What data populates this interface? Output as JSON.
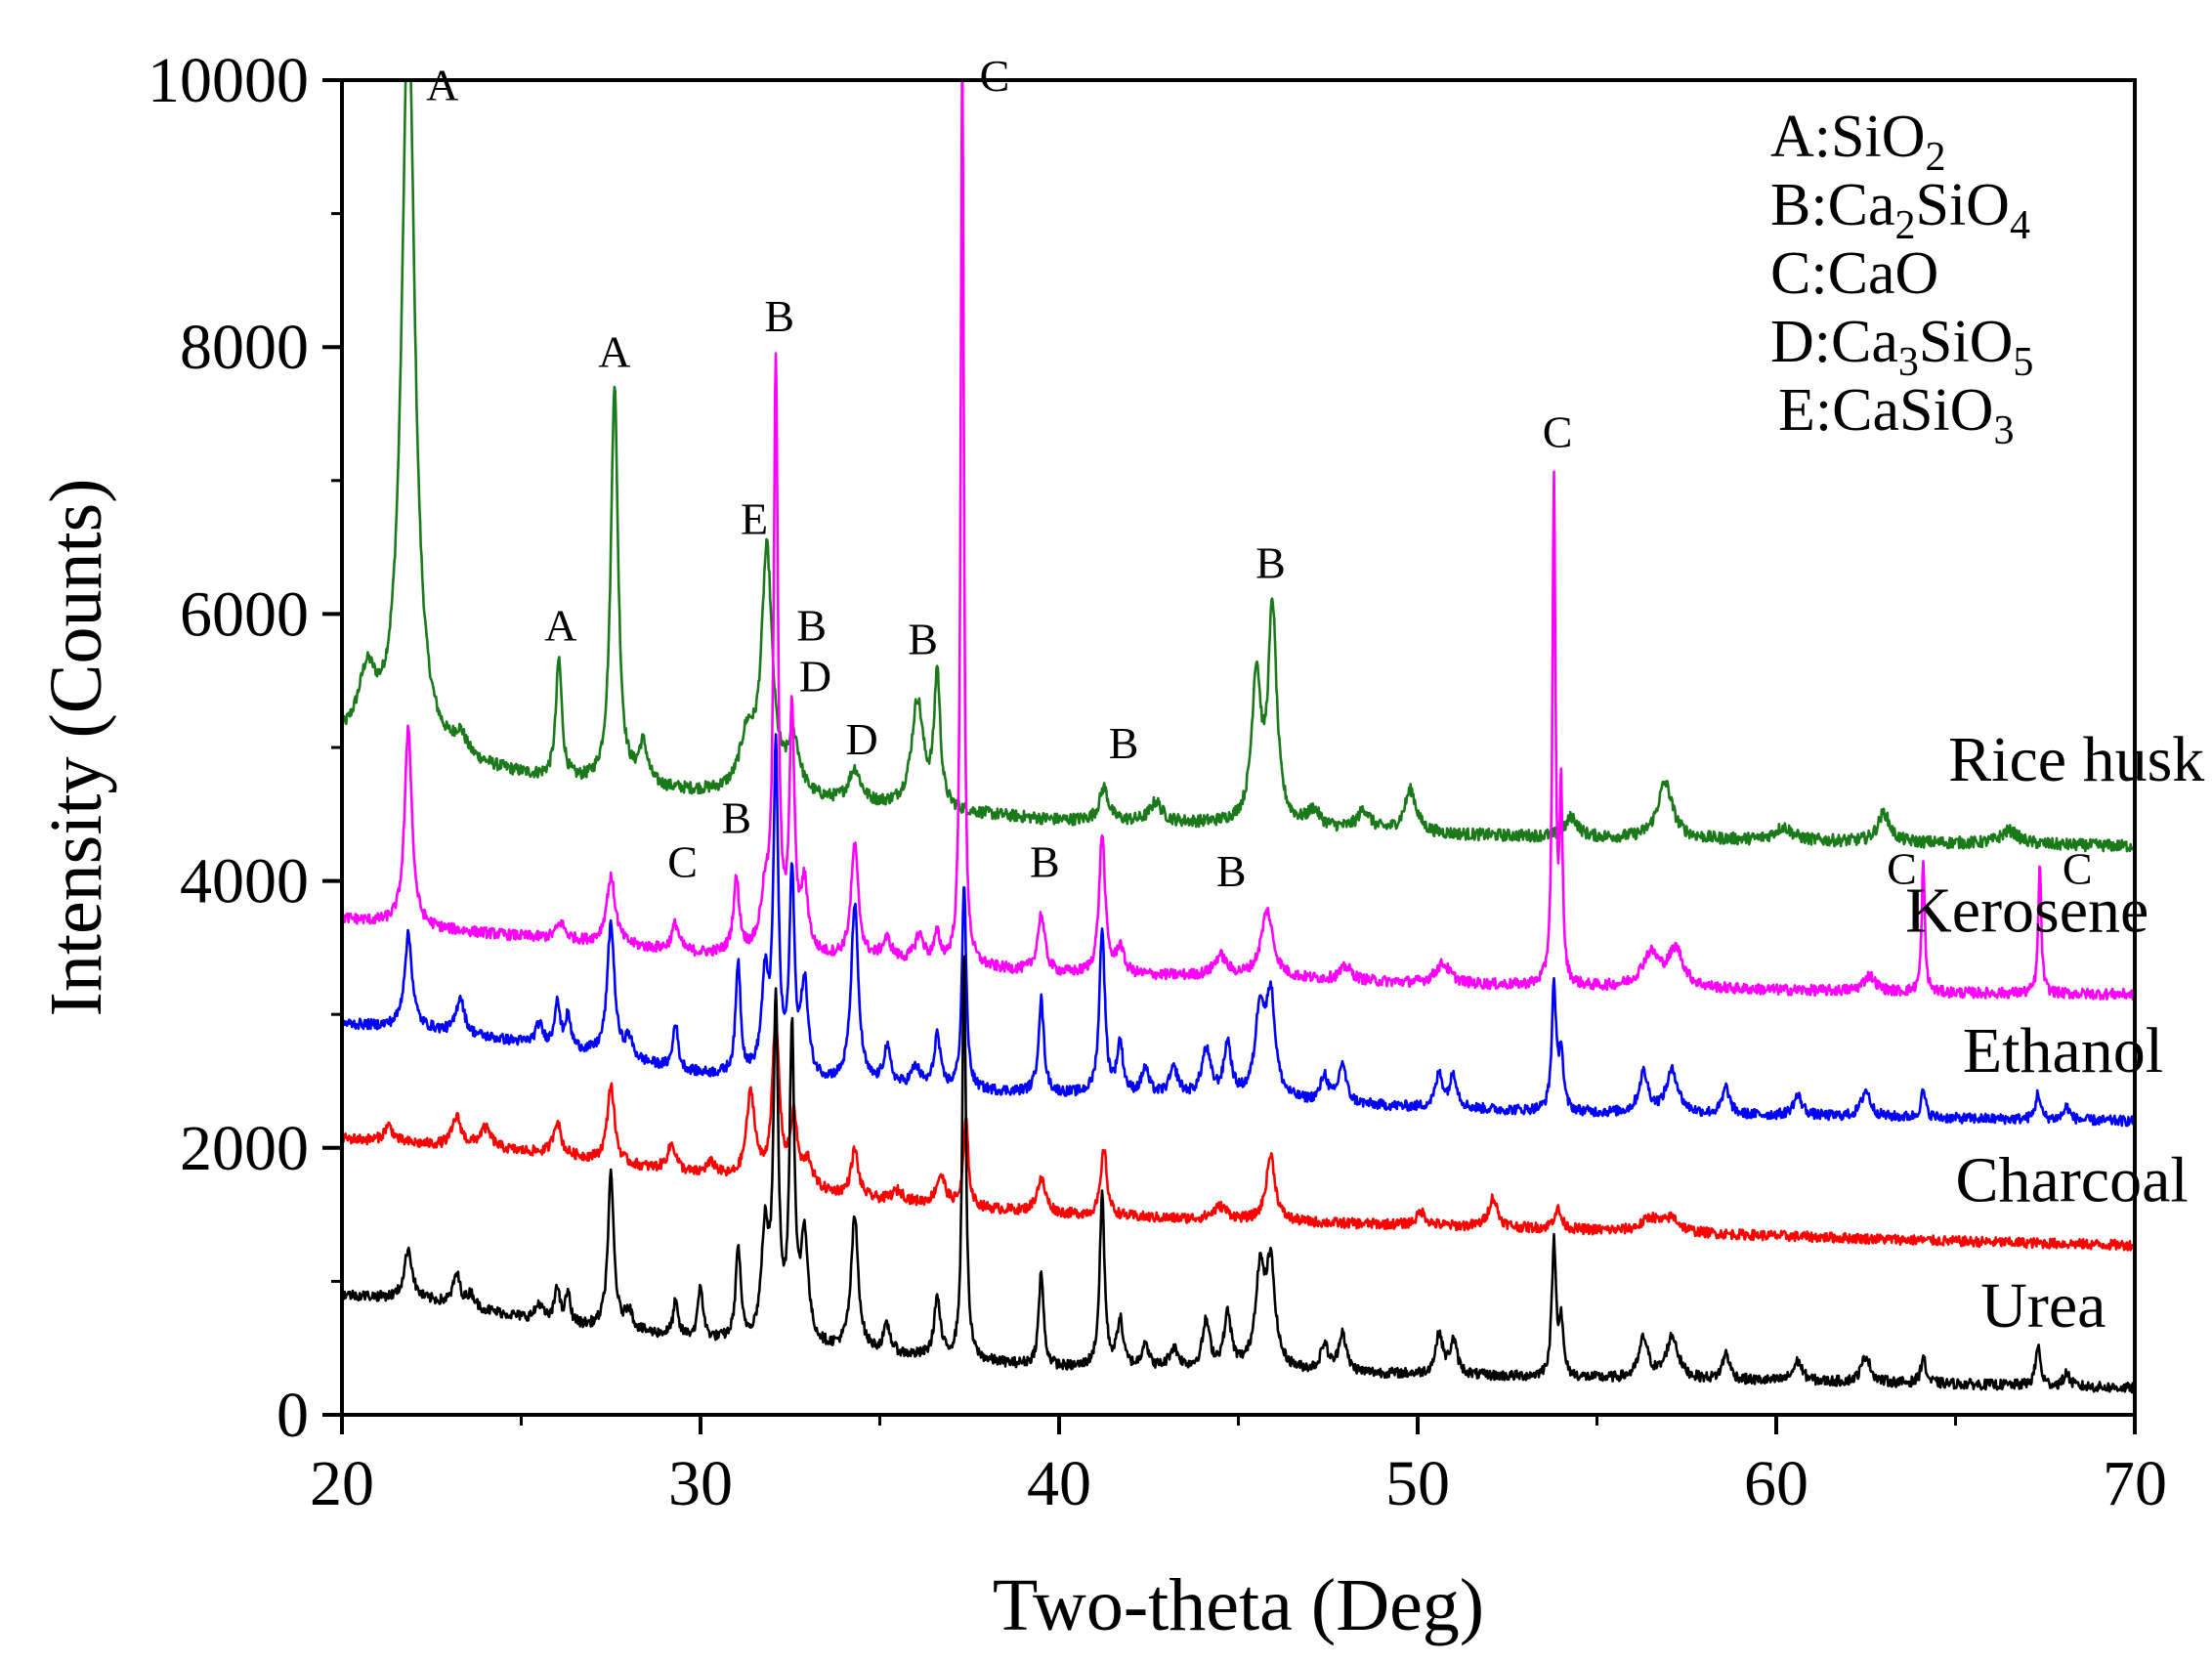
{
  "chart_data": {
    "type": "line",
    "title": "",
    "xlabel": "Two-theta (Deg)",
    "ylabel": "Intensity (Counts)",
    "xlim": [
      20,
      70
    ],
    "ylim": [
      0,
      10000
    ],
    "x_ticks": [
      20,
      30,
      40,
      50,
      60,
      70
    ],
    "x_tick_labels": [
      "20",
      "30",
      "40",
      "50",
      "60",
      "70"
    ],
    "y_ticks": [
      0,
      2000,
      4000,
      6000,
      8000,
      10000
    ],
    "y_tick_labels": [
      "0",
      "2000",
      "4000",
      "6000",
      "8000",
      "10000"
    ],
    "grid": false,
    "phase_legend": [
      {
        "letter": "A",
        "base": ":SiO",
        "parts": [
          [
            "2",
            true
          ]
        ]
      },
      {
        "letter": "B",
        "base": ":Ca",
        "parts": [
          [
            "2",
            true
          ],
          [
            "SiO",
            false
          ],
          [
            "4",
            true
          ]
        ]
      },
      {
        "letter": "C",
        "base": ":CaO",
        "parts": []
      },
      {
        "letter": "D",
        "base": ":Ca",
        "parts": [
          [
            "3",
            true
          ],
          [
            "SiO",
            false
          ],
          [
            "5",
            true
          ]
        ]
      },
      {
        "letter": "E",
        "base": ":CaSiO",
        "parts": [
          [
            "3",
            true
          ]
        ]
      }
    ],
    "series": [
      {
        "name": "Rice husk",
        "color": "#1a7a1a",
        "label_x": 64.8,
        "label_y": 4750,
        "baseline": [
          [
            20,
            5020
          ],
          [
            22.5,
            4900
          ],
          [
            26,
            4730
          ],
          [
            30,
            4650
          ],
          [
            35,
            4550
          ],
          [
            40,
            4450
          ],
          [
            45,
            4420
          ],
          [
            50,
            4350
          ],
          [
            55,
            4320
          ],
          [
            60,
            4300
          ],
          [
            65,
            4280
          ],
          [
            70,
            4260
          ]
        ],
        "peaks": [
          [
            20.7,
            480,
            0.3
          ],
          [
            21.85,
            5600,
            0.22
          ],
          [
            23.3,
            150,
            0.2
          ],
          [
            26.05,
            900,
            0.1
          ],
          [
            27.6,
            3000,
            0.12
          ],
          [
            28.4,
            300,
            0.15
          ],
          [
            31.3,
            400,
            0.25
          ],
          [
            31.85,
            1800,
            0.18
          ],
          [
            32.6,
            400,
            0.2
          ],
          [
            34.3,
            250,
            0.2
          ],
          [
            36.05,
            800,
            0.2
          ],
          [
            36.6,
            1000,
            0.1
          ],
          [
            41.25,
            250,
            0.15
          ],
          [
            42.7,
            150,
            0.2
          ],
          [
            45.5,
            1100,
            0.15
          ],
          [
            45.95,
            1600,
            0.14
          ],
          [
            47.1,
            120,
            0.2
          ],
          [
            48.5,
            150,
            0.2
          ],
          [
            49.8,
            320,
            0.2
          ],
          [
            54.3,
            150,
            0.2
          ],
          [
            56.9,
            420,
            0.25
          ],
          [
            60.2,
            100,
            0.3
          ],
          [
            63.0,
            220,
            0.2
          ],
          [
            66.5,
            100,
            0.3
          ]
        ],
        "noise": 45
      },
      {
        "name": "Kerosene",
        "color": "#ff00ff",
        "label_x": 63.6,
        "label_y": 3620,
        "baseline": [
          [
            20,
            3720
          ],
          [
            22.5,
            3640
          ],
          [
            26,
            3560
          ],
          [
            30,
            3450
          ],
          [
            35,
            3400
          ],
          [
            40,
            3300
          ],
          [
            45,
            3280
          ],
          [
            50,
            3230
          ],
          [
            55,
            3200
          ],
          [
            60,
            3180
          ],
          [
            65,
            3160
          ],
          [
            70,
            3150
          ]
        ],
        "peaks": [
          [
            21.85,
            1500,
            0.12
          ],
          [
            26.1,
            120,
            0.15
          ],
          [
            27.5,
            500,
            0.15
          ],
          [
            29.3,
            200,
            0.12
          ],
          [
            31.0,
            550,
            0.1
          ],
          [
            31.8,
            400,
            0.15
          ],
          [
            32.1,
            4400,
            0.07
          ],
          [
            32.55,
            1800,
            0.08
          ],
          [
            32.9,
            500,
            0.12
          ],
          [
            34.3,
            850,
            0.12
          ],
          [
            35.2,
            150,
            0.15
          ],
          [
            36.1,
            200,
            0.15
          ],
          [
            36.6,
            200,
            0.1
          ],
          [
            37.3,
            7000,
            0.05
          ],
          [
            39.5,
            430,
            0.12
          ],
          [
            41.2,
            1050,
            0.1
          ],
          [
            41.7,
            200,
            0.12
          ],
          [
            44.5,
            150,
            0.2
          ],
          [
            45.8,
            500,
            0.2
          ],
          [
            48.0,
            100,
            0.2
          ],
          [
            50.7,
            150,
            0.25
          ],
          [
            53.8,
            3750,
            0.05
          ],
          [
            54.0,
            1400,
            0.05
          ],
          [
            56.5,
            250,
            0.3
          ],
          [
            57.2,
            280,
            0.25
          ],
          [
            62.6,
            120,
            0.2
          ],
          [
            64.1,
            980,
            0.05
          ],
          [
            67.35,
            980,
            0.05
          ]
        ],
        "noise": 40
      },
      {
        "name": "Ethanol",
        "color": "#0000ff",
        "label_x": 65.2,
        "label_y": 2570,
        "baseline": [
          [
            20,
            2930
          ],
          [
            22.5,
            2880
          ],
          [
            26,
            2750
          ],
          [
            30,
            2550
          ],
          [
            35,
            2450
          ],
          [
            40,
            2400
          ],
          [
            45,
            2360
          ],
          [
            50,
            2300
          ],
          [
            55,
            2260
          ],
          [
            60,
            2240
          ],
          [
            65,
            2220
          ],
          [
            70,
            2200
          ]
        ],
        "peaks": [
          [
            21.85,
            700,
            0.13
          ],
          [
            23.3,
            280,
            0.13
          ],
          [
            25.5,
            150,
            0.12
          ],
          [
            26.0,
            350,
            0.08
          ],
          [
            26.3,
            230,
            0.1
          ],
          [
            27.5,
            1000,
            0.12
          ],
          [
            28.0,
            150,
            0.12
          ],
          [
            29.3,
            350,
            0.08
          ],
          [
            31.05,
            850,
            0.08
          ],
          [
            31.8,
            700,
            0.12
          ],
          [
            32.1,
            2400,
            0.08
          ],
          [
            32.55,
            1500,
            0.08
          ],
          [
            32.9,
            700,
            0.12
          ],
          [
            34.3,
            1350,
            0.12
          ],
          [
            35.2,
            280,
            0.12
          ],
          [
            36.0,
            150,
            0.15
          ],
          [
            36.6,
            400,
            0.1
          ],
          [
            37.35,
            1550,
            0.07
          ],
          [
            39.5,
            700,
            0.09
          ],
          [
            41.2,
            1250,
            0.09
          ],
          [
            41.7,
            380,
            0.1
          ],
          [
            42.4,
            200,
            0.12
          ],
          [
            43.2,
            200,
            0.15
          ],
          [
            44.1,
            350,
            0.15
          ],
          [
            44.7,
            400,
            0.12
          ],
          [
            45.6,
            650,
            0.15
          ],
          [
            45.9,
            750,
            0.15
          ],
          [
            47.4,
            200,
            0.12
          ],
          [
            47.9,
            300,
            0.12
          ],
          [
            50.6,
            250,
            0.12
          ],
          [
            51.0,
            250,
            0.12
          ],
          [
            53.8,
            950,
            0.07
          ],
          [
            54.0,
            450,
            0.07
          ],
          [
            56.3,
            300,
            0.15
          ],
          [
            57.1,
            320,
            0.2
          ],
          [
            58.6,
            200,
            0.12
          ],
          [
            60.6,
            150,
            0.15
          ],
          [
            62.5,
            200,
            0.15
          ],
          [
            64.1,
            200,
            0.08
          ],
          [
            67.3,
            200,
            0.08
          ],
          [
            68.1,
            100,
            0.1
          ]
        ],
        "noise": 38
      },
      {
        "name": "Charcoal",
        "color": "#ff0000",
        "label_x": 65.0,
        "label_y": 1600,
        "baseline": [
          [
            20,
            2070
          ],
          [
            22.5,
            2020
          ],
          [
            26,
            1950
          ],
          [
            30,
            1780
          ],
          [
            35,
            1600
          ],
          [
            40,
            1500
          ],
          [
            45,
            1450
          ],
          [
            50,
            1420
          ],
          [
            55,
            1380
          ],
          [
            60,
            1340
          ],
          [
            65,
            1300
          ],
          [
            70,
            1270
          ]
        ],
        "peaks": [
          [
            21.3,
            120,
            0.15
          ],
          [
            23.2,
            220,
            0.15
          ],
          [
            24.0,
            150,
            0.2
          ],
          [
            26.0,
            250,
            0.12
          ],
          [
            27.5,
            580,
            0.12
          ],
          [
            29.2,
            200,
            0.15
          ],
          [
            30.3,
            100,
            0.2
          ],
          [
            31.4,
            650,
            0.15
          ],
          [
            32.1,
            1200,
            0.12
          ],
          [
            32.6,
            500,
            0.12
          ],
          [
            33.0,
            200,
            0.15
          ],
          [
            34.3,
            350,
            0.12
          ],
          [
            35.5,
            80,
            0.2
          ],
          [
            36.7,
            220,
            0.15
          ],
          [
            37.4,
            650,
            0.08
          ],
          [
            39.5,
            250,
            0.15
          ],
          [
            41.25,
            500,
            0.1
          ],
          [
            44.5,
            100,
            0.25
          ],
          [
            45.9,
            500,
            0.15
          ],
          [
            50.1,
            100,
            0.15
          ],
          [
            52.1,
            220,
            0.15
          ],
          [
            53.9,
            150,
            0.12
          ],
          [
            56.5,
            100,
            0.3
          ],
          [
            57.1,
            100,
            0.25
          ]
        ],
        "noise": 38
      },
      {
        "name": "Urea",
        "color": "#000000",
        "label_x": 65.7,
        "label_y": 660,
        "baseline": [
          [
            20,
            900
          ],
          [
            22.5,
            850
          ],
          [
            26,
            680
          ],
          [
            30,
            560
          ],
          [
            35,
            450
          ],
          [
            40,
            350
          ],
          [
            45,
            330
          ],
          [
            50,
            300
          ],
          [
            55,
            270
          ],
          [
            60,
            250
          ],
          [
            65,
            230
          ],
          [
            70,
            200
          ]
        ],
        "peaks": [
          [
            21.85,
            380,
            0.13
          ],
          [
            23.2,
            230,
            0.12
          ],
          [
            23.6,
            100,
            0.12
          ],
          [
            25.5,
            120,
            0.12
          ],
          [
            26.0,
            280,
            0.08
          ],
          [
            26.3,
            230,
            0.08
          ],
          [
            27.5,
            1150,
            0.1
          ],
          [
            28.0,
            150,
            0.12
          ],
          [
            29.3,
            250,
            0.08
          ],
          [
            30.0,
            400,
            0.08
          ],
          [
            31.05,
            700,
            0.08
          ],
          [
            31.8,
            800,
            0.12
          ],
          [
            32.1,
            2500,
            0.08
          ],
          [
            32.55,
            2300,
            0.08
          ],
          [
            32.9,
            800,
            0.12
          ],
          [
            34.3,
            1000,
            0.12
          ],
          [
            35.2,
            200,
            0.12
          ],
          [
            36.6,
            450,
            0.1
          ],
          [
            37.35,
            3100,
            0.06
          ],
          [
            39.5,
            700,
            0.08
          ],
          [
            41.2,
            1300,
            0.08
          ],
          [
            41.7,
            350,
            0.1
          ],
          [
            42.4,
            200,
            0.1
          ],
          [
            43.2,
            150,
            0.15
          ],
          [
            44.1,
            350,
            0.12
          ],
          [
            44.7,
            400,
            0.12
          ],
          [
            45.6,
            700,
            0.15
          ],
          [
            45.9,
            750,
            0.15
          ],
          [
            47.4,
            200,
            0.12
          ],
          [
            47.9,
            300,
            0.12
          ],
          [
            50.6,
            300,
            0.12
          ],
          [
            51.0,
            250,
            0.12
          ],
          [
            53.8,
            1000,
            0.07
          ],
          [
            54.0,
            400,
            0.07
          ],
          [
            56.3,
            300,
            0.15
          ],
          [
            57.1,
            320,
            0.2
          ],
          [
            58.6,
            200,
            0.12
          ],
          [
            60.6,
            150,
            0.15
          ],
          [
            62.5,
            200,
            0.15
          ],
          [
            64.1,
            200,
            0.08
          ],
          [
            67.3,
            300,
            0.08
          ],
          [
            68.1,
            100,
            0.1
          ]
        ],
        "noise": 38
      }
    ],
    "annotations": [
      {
        "text": "A",
        "x": 22.8,
        "y": 9850
      },
      {
        "text": "A",
        "x": 27.6,
        "y": 7850
      },
      {
        "text": "A",
        "x": 26.1,
        "y": 5800
      },
      {
        "text": "B",
        "x": 32.2,
        "y": 8120
      },
      {
        "text": "E",
        "x": 31.5,
        "y": 6600
      },
      {
        "text": "B",
        "x": 33.1,
        "y": 5800
      },
      {
        "text": "D",
        "x": 33.2,
        "y": 5420
      },
      {
        "text": "D",
        "x": 34.5,
        "y": 4950
      },
      {
        "text": "B",
        "x": 36.2,
        "y": 5700
      },
      {
        "text": "C",
        "x": 38.2,
        "y": 9920
      },
      {
        "text": "C",
        "x": 29.5,
        "y": 4030
      },
      {
        "text": "B",
        "x": 31.0,
        "y": 4360
      },
      {
        "text": "B",
        "x": 39.6,
        "y": 4030
      },
      {
        "text": "B",
        "x": 41.8,
        "y": 4920
      },
      {
        "text": "B",
        "x": 44.8,
        "y": 3960
      },
      {
        "text": "B",
        "x": 45.9,
        "y": 6270
      },
      {
        "text": "C",
        "x": 53.9,
        "y": 7250
      },
      {
        "text": "C",
        "x": 63.5,
        "y": 3980
      },
      {
        "text": "C",
        "x": 68.4,
        "y": 3980
      }
    ]
  }
}
